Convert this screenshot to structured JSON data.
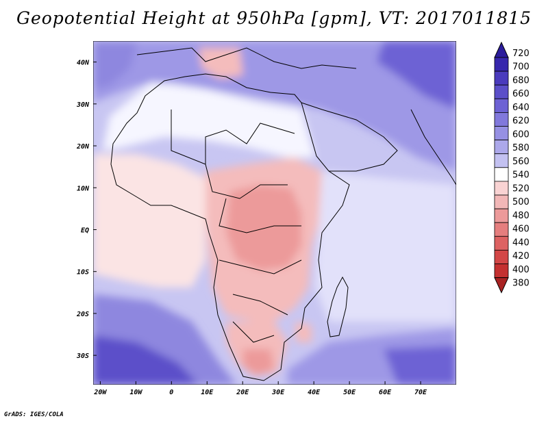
{
  "title": "Geopotential Height at 950hPa [gpm], VT: 2017011815",
  "footer": "GrADS: IGES/COLA",
  "map": {
    "variable": "Geopotential Height",
    "level": "950hPa",
    "units": "gpm",
    "valid_time": "2017011815",
    "lon_ticks": [
      "20W",
      "10W",
      "0",
      "10E",
      "20E",
      "30E",
      "40E",
      "50E",
      "60E",
      "70E"
    ],
    "lat_ticks": [
      "40N",
      "30N",
      "20N",
      "10N",
      "EQ",
      "10S",
      "20S",
      "30S"
    ],
    "lon_values": [
      -20,
      -10,
      0,
      10,
      20,
      30,
      40,
      50,
      60,
      70
    ],
    "lat_values": [
      40,
      30,
      20,
      10,
      0,
      -10,
      -20,
      -30
    ],
    "lon_range": [
      -22,
      80
    ],
    "lat_range": [
      -37,
      45
    ]
  },
  "colorbar": {
    "levels": [
      "720",
      "700",
      "680",
      "660",
      "640",
      "620",
      "600",
      "580",
      "560",
      "540",
      "520",
      "500",
      "480",
      "460",
      "440",
      "420",
      "400",
      "380"
    ],
    "colors": [
      "#2b1c9c",
      "#3727ad",
      "#4a3bbd",
      "#5b4fc9",
      "#6d62d4",
      "#8178dc",
      "#9690e3",
      "#aca8ea",
      "#c3c1f1",
      "#ffffff",
      "#f9d3d3",
      "#f2b7b7",
      "#ec9a9a",
      "#e57e7e",
      "#dd6262",
      "#d34747",
      "#c43030",
      "#a82222"
    ]
  }
}
